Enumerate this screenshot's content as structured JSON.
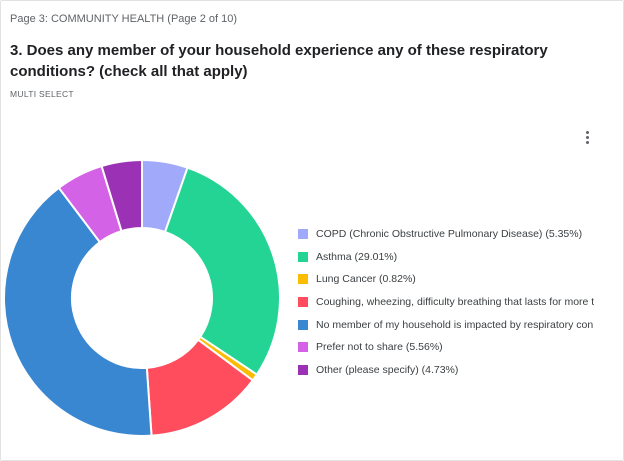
{
  "page": {
    "label": "Page 3: COMMUNITY HEALTH (Page 2 of 10)",
    "question": "3. Does any member of your household experience any of these respiratory conditions? (check all that apply)",
    "question_type": "MULTI SELECT",
    "menu_icon": "vertical-dots-icon"
  },
  "chart_data": {
    "type": "pie",
    "donut": true,
    "legend_position": "right",
    "title": "",
    "series": [
      {
        "label": "COPD (Chronic Obstructive Pulmonary Disease) (5.35%)",
        "value": 5.35,
        "color": "#a1a9fb"
      },
      {
        "label": "Asthma (29.01%)",
        "value": 29.01,
        "color": "#24d494"
      },
      {
        "label": "Lung Cancer (0.82%)",
        "value": 0.82,
        "color": "#fbbc04"
      },
      {
        "label": "Coughing, wheezing, difficulty breathing that lasts for more t",
        "value": 13.72,
        "color": "#ff4d5e"
      },
      {
        "label": "No member of my household is impacted by respiratory con",
        "value": 40.81,
        "color": "#3a87d1"
      },
      {
        "label": "Prefer not to share (5.56%)",
        "value": 5.56,
        "color": "#d462e6"
      },
      {
        "label": "Other (please specify) (4.73%)",
        "value": 4.73,
        "color": "#9b31b5"
      }
    ]
  }
}
